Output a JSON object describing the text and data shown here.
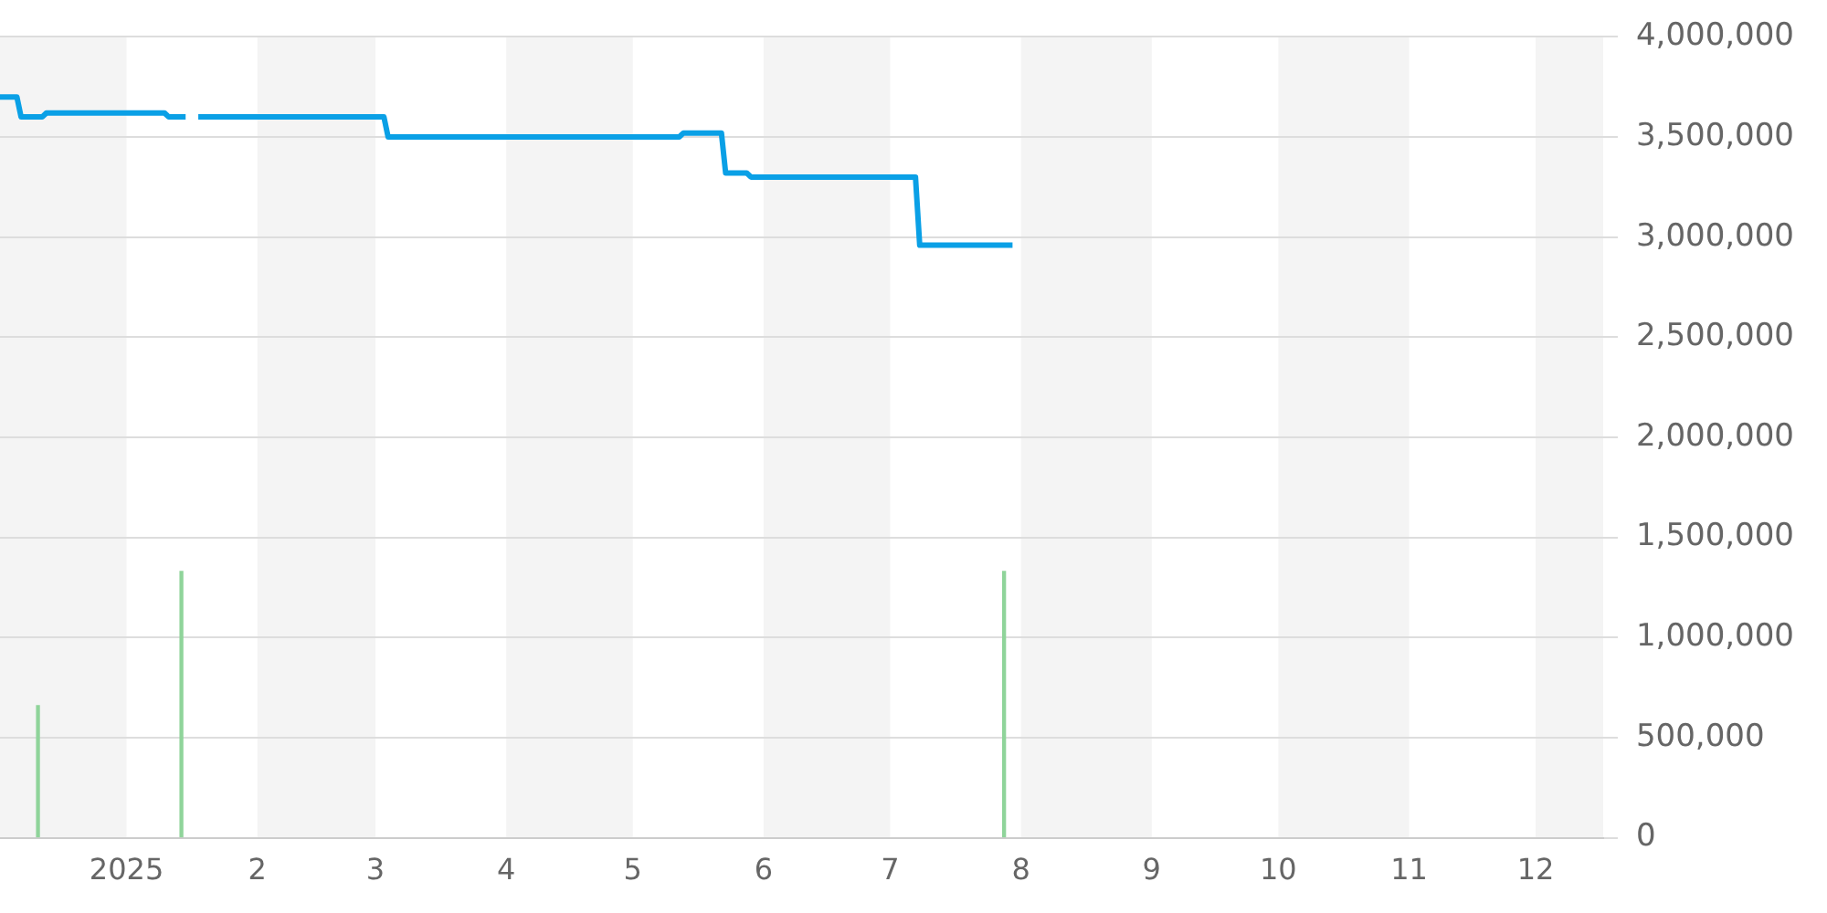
{
  "chart_data": {
    "type": "line",
    "series": [
      {
        "name": null,
        "color": "#0aa0e6",
        "x": [
          "2024-12-02",
          "2024-12-06",
          "2024-12-07",
          "2024-12-12",
          "2024-12-13",
          "2025-01-10",
          "2025-01-11",
          "2025-01-15",
          "2025-01-16",
          "2025-01-18",
          "2025-03-03",
          "2025-03-04",
          "2025-05-12",
          "2025-05-13",
          "2025-05-22",
          "2025-05-23",
          "2025-05-28",
          "2025-05-29",
          "2025-07-07",
          "2025-07-08",
          "2025-07-30"
        ],
        "values": [
          3700000,
          3700000,
          3600000,
          3600000,
          3620000,
          3620000,
          3600000,
          3600000,
          null,
          3600000,
          3600000,
          3500000,
          3500000,
          3520000,
          3520000,
          3320000,
          3320000,
          3300000,
          3300000,
          2960000,
          2960000
        ]
      },
      {
        "name": null,
        "type": "bar",
        "color": "#8fd49a",
        "x": [
          "2024-12-11",
          "2025-01-14",
          "2025-07-28"
        ],
        "values": [
          660000,
          1330000,
          1330000
        ]
      }
    ],
    "xlim": [
      "2024-12-02",
      "2025-12-17"
    ],
    "xticks": [
      {
        "value": "2025-01-01",
        "label": "2025"
      },
      {
        "value": "2025-02-01",
        "label": "2"
      },
      {
        "value": "2025-03-01",
        "label": "3"
      },
      {
        "value": "2025-04-01",
        "label": "4"
      },
      {
        "value": "2025-05-01",
        "label": "5"
      },
      {
        "value": "2025-06-01",
        "label": "6"
      },
      {
        "value": "2025-07-01",
        "label": "7"
      },
      {
        "value": "2025-08-01",
        "label": "8"
      },
      {
        "value": "2025-09-01",
        "label": "9"
      },
      {
        "value": "2025-10-01",
        "label": "10"
      },
      {
        "value": "2025-11-01",
        "label": "11"
      },
      {
        "value": "2025-12-01",
        "label": "12"
      }
    ],
    "ylim": [
      0,
      4000000
    ],
    "yticks": [
      {
        "value": 0,
        "label": "0"
      },
      {
        "value": 500000,
        "label": "500,000"
      },
      {
        "value": 1000000,
        "label": "1,000,000"
      },
      {
        "value": 1500000,
        "label": "1,500,000"
      },
      {
        "value": 2000000,
        "label": "2,000,000"
      },
      {
        "value": 2500000,
        "label": "2,500,000"
      },
      {
        "value": 3000000,
        "label": "3,000,000"
      },
      {
        "value": 3500000,
        "label": "3,500,000"
      },
      {
        "value": 4000000,
        "label": "4,000,000"
      }
    ],
    "bands": [
      {
        "axis": "x",
        "from": "2024-12-02",
        "to": "2025-01-01",
        "color": "#f4f4f4"
      },
      {
        "axis": "x",
        "from": "2025-02-01",
        "to": "2025-03-01",
        "color": "#f4f4f4"
      },
      {
        "axis": "x",
        "from": "2025-04-01",
        "to": "2025-05-01",
        "color": "#f4f4f4"
      },
      {
        "axis": "x",
        "from": "2025-06-01",
        "to": "2025-07-01",
        "color": "#f4f4f4"
      },
      {
        "axis": "x",
        "from": "2025-08-01",
        "to": "2025-09-01",
        "color": "#f4f4f4"
      },
      {
        "axis": "x",
        "from": "2025-10-01",
        "to": "2025-11-01",
        "color": "#f4f4f4"
      },
      {
        "axis": "x",
        "from": "2025-12-01",
        "to": "2025-12-17",
        "color": "#f4f4f4"
      }
    ],
    "grid": "y",
    "legend": false,
    "marker": "none",
    "line_style": "solid"
  }
}
